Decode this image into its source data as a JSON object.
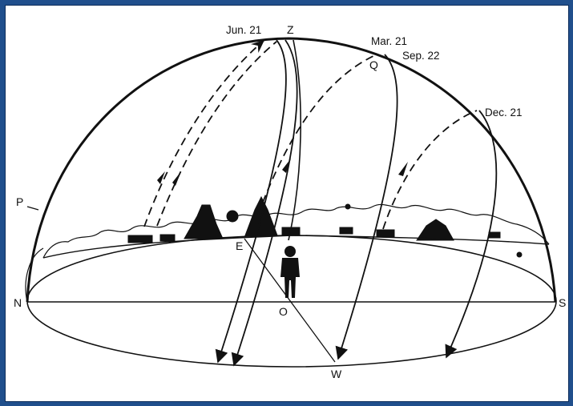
{
  "labels": {
    "zenith": "Z",
    "north": "N",
    "south": "S",
    "west": "W",
    "east": "E",
    "observer": "O",
    "pole": "P",
    "equator_point": "Q"
  },
  "dates": {
    "june": "Jun. 21",
    "march": "Mar. 21",
    "september": "Sep. 22",
    "december": "Dec. 21"
  },
  "colors": {
    "frame": "#204f8c",
    "background": "#ffffff",
    "ink": "#111111"
  }
}
